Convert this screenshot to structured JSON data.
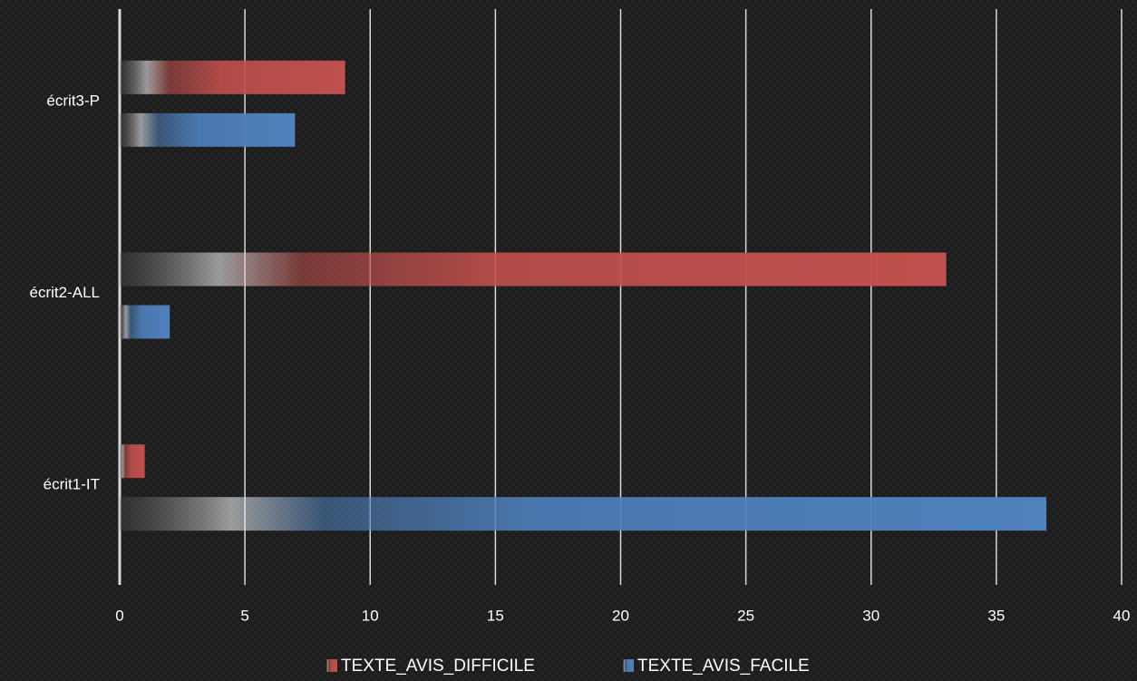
{
  "chart_data": {
    "type": "bar",
    "orientation": "horizontal",
    "categories": [
      "écrit3-P",
      "écrit2-ALL",
      "écrit1-IT"
    ],
    "series": [
      {
        "name": "TEXTE_AVIS_DIFFICILE",
        "color": "#c0504d",
        "values": [
          9,
          33,
          1
        ]
      },
      {
        "name": "TEXTE_AVIS_FACILE",
        "color": "#4f81bd",
        "values": [
          7,
          2,
          37
        ]
      }
    ],
    "xlim": [
      0,
      40
    ],
    "xticks": [
      0,
      5,
      10,
      15,
      20,
      25,
      30,
      35,
      40
    ],
    "grid": true,
    "legend": "bottom"
  }
}
